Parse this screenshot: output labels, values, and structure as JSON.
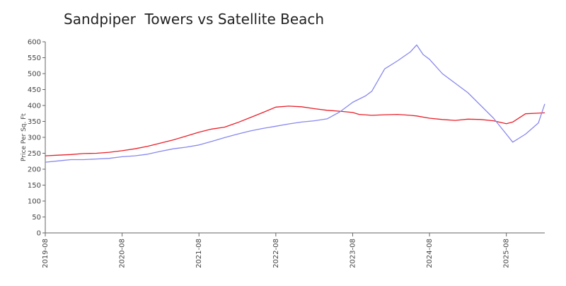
{
  "chart_data": {
    "type": "line",
    "title": "Sandpiper  Towers vs Satellite Beach",
    "xlabel": "",
    "ylabel": "Price Per Sq. Ft",
    "ylim": [
      0,
      600
    ],
    "xlim": [
      "2019-08",
      "2026-02"
    ],
    "y_ticks": [
      0,
      50,
      100,
      150,
      200,
      250,
      300,
      350,
      400,
      450,
      500,
      550,
      600
    ],
    "x_ticks": [
      "2019-08",
      "2020-08",
      "2021-08",
      "2022-08",
      "2023-08",
      "2024-08",
      "2025-08"
    ],
    "grid": false,
    "legend": "none",
    "series": [
      {
        "color": "#e8202a",
        "points": [
          [
            "2019-08",
            242
          ],
          [
            "2019-10",
            244
          ],
          [
            "2019-12",
            246
          ],
          [
            "2020-02",
            249
          ],
          [
            "2020-04",
            250
          ],
          [
            "2020-06",
            253
          ],
          [
            "2020-08",
            258
          ],
          [
            "2020-10",
            264
          ],
          [
            "2020-12",
            272
          ],
          [
            "2021-02",
            282
          ],
          [
            "2021-04",
            292
          ],
          [
            "2021-06",
            304
          ],
          [
            "2021-08",
            316
          ],
          [
            "2021-10",
            326
          ],
          [
            "2021-12",
            332
          ],
          [
            "2022-02",
            346
          ],
          [
            "2022-04",
            362
          ],
          [
            "2022-06",
            378
          ],
          [
            "2022-08",
            395
          ],
          [
            "2022-10",
            398
          ],
          [
            "2022-12",
            396
          ],
          [
            "2023-02",
            390
          ],
          [
            "2023-04",
            385
          ],
          [
            "2023-06",
            382
          ],
          [
            "2023-08",
            378
          ],
          [
            "2023-09",
            372
          ],
          [
            "2023-11",
            369
          ],
          [
            "2024-01",
            371
          ],
          [
            "2024-03",
            372
          ],
          [
            "2024-05",
            369
          ],
          [
            "2024-06",
            367
          ],
          [
            "2024-08",
            360
          ],
          [
            "2024-10",
            356
          ],
          [
            "2024-12",
            353
          ],
          [
            "2025-02",
            357
          ],
          [
            "2025-04",
            356
          ],
          [
            "2025-06",
            352
          ],
          [
            "2025-08",
            343
          ],
          [
            "2025-09",
            348
          ],
          [
            "2025-11",
            374
          ],
          [
            "2026-02",
            377
          ]
        ]
      },
      {
        "color": "#8888ee",
        "points": [
          [
            "2019-08",
            222
          ],
          [
            "2019-10",
            226
          ],
          [
            "2019-12",
            230
          ],
          [
            "2020-02",
            230
          ],
          [
            "2020-04",
            232
          ],
          [
            "2020-06",
            234
          ],
          [
            "2020-08",
            239
          ],
          [
            "2020-10",
            242
          ],
          [
            "2020-12",
            247
          ],
          [
            "2021-02",
            256
          ],
          [
            "2021-04",
            264
          ],
          [
            "2021-06",
            269
          ],
          [
            "2021-08",
            276
          ],
          [
            "2021-10",
            287
          ],
          [
            "2021-12",
            299
          ],
          [
            "2022-02",
            310
          ],
          [
            "2022-04",
            320
          ],
          [
            "2022-06",
            328
          ],
          [
            "2022-08",
            335
          ],
          [
            "2022-10",
            342
          ],
          [
            "2022-12",
            348
          ],
          [
            "2023-02",
            352
          ],
          [
            "2023-04",
            358
          ],
          [
            "2023-06",
            380
          ],
          [
            "2023-08",
            410
          ],
          [
            "2023-10",
            430
          ],
          [
            "2023-11",
            445
          ],
          [
            "2024-01",
            515
          ],
          [
            "2024-03",
            540
          ],
          [
            "2024-05",
            568
          ],
          [
            "2024-06",
            590
          ],
          [
            "2024-07",
            560
          ],
          [
            "2024-08",
            545
          ],
          [
            "2024-10",
            500
          ],
          [
            "2024-12",
            470
          ],
          [
            "2025-02",
            440
          ],
          [
            "2025-04",
            400
          ],
          [
            "2025-06",
            360
          ],
          [
            "2025-08",
            310
          ],
          [
            "2025-09",
            285
          ],
          [
            "2025-11",
            310
          ],
          [
            "2026-01",
            345
          ],
          [
            "2026-02",
            405
          ]
        ]
      }
    ]
  }
}
